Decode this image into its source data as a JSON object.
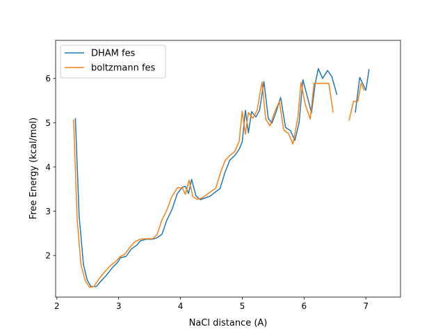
{
  "chart_data": {
    "type": "line",
    "xlabel": "NaCl distance (A)",
    "ylabel": "Free Energy (kcal/mol)",
    "xlim": [
      1.98,
      7.56
    ],
    "ylim": [
      1.06,
      6.86
    ],
    "xticks": [
      2,
      3,
      4,
      5,
      6,
      7
    ],
    "yticks": [
      2,
      3,
      4,
      5,
      6
    ],
    "grid": false,
    "legend_position": "top-left",
    "series": [
      {
        "name": "DHAM fes",
        "color": "#1f77b4",
        "segments": [
          [
            [
              2.3,
              5.09
            ],
            [
              2.36,
              2.9
            ],
            [
              2.43,
              1.8
            ],
            [
              2.49,
              1.45
            ],
            [
              2.55,
              1.3
            ],
            [
              2.64,
              1.3
            ],
            [
              2.7,
              1.4
            ],
            [
              2.8,
              1.55
            ],
            [
              2.9,
              1.73
            ],
            [
              2.98,
              1.84
            ],
            [
              3.03,
              1.95
            ],
            [
              3.12,
              1.98
            ],
            [
              3.2,
              2.14
            ],
            [
              3.3,
              2.24
            ],
            [
              3.35,
              2.33
            ],
            [
              3.45,
              2.37
            ],
            [
              3.55,
              2.37
            ],
            [
              3.62,
              2.4
            ],
            [
              3.7,
              2.48
            ],
            [
              3.78,
              2.8
            ],
            [
              3.86,
              3.03
            ],
            [
              3.95,
              3.4
            ],
            [
              4.03,
              3.54
            ],
            [
              4.08,
              3.56
            ],
            [
              4.13,
              3.4
            ],
            [
              4.18,
              3.72
            ],
            [
              4.25,
              3.35
            ],
            [
              4.32,
              3.26
            ],
            [
              4.4,
              3.3
            ],
            [
              4.48,
              3.34
            ],
            [
              4.55,
              3.42
            ],
            [
              4.64,
              3.51
            ],
            [
              4.72,
              3.88
            ],
            [
              4.8,
              4.16
            ],
            [
              4.88,
              4.26
            ],
            [
              4.95,
              4.4
            ],
            [
              5.0,
              4.57
            ],
            [
              5.05,
              5.28
            ],
            [
              5.1,
              4.77
            ],
            [
              5.15,
              5.25
            ],
            [
              5.22,
              5.13
            ],
            [
              5.28,
              5.28
            ],
            [
              5.35,
              5.93
            ],
            [
              5.42,
              5.1
            ],
            [
              5.48,
              4.99
            ],
            [
              5.55,
              5.25
            ],
            [
              5.62,
              5.57
            ],
            [
              5.7,
              4.89
            ],
            [
              5.78,
              4.82
            ],
            [
              5.85,
              4.6
            ],
            [
              5.92,
              5.0
            ],
            [
              5.98,
              5.97
            ],
            [
              6.05,
              5.6
            ],
            [
              6.12,
              5.22
            ],
            [
              6.18,
              5.88
            ],
            [
              6.23,
              6.22
            ],
            [
              6.3,
              6.0
            ],
            [
              6.38,
              6.18
            ],
            [
              6.45,
              6.04
            ],
            [
              6.53,
              5.64
            ]
          ],
          [
            [
              6.83,
              5.24
            ],
            [
              6.9,
              6.02
            ],
            [
              6.95,
              5.88
            ],
            [
              7.0,
              5.73
            ],
            [
              7.05,
              6.2
            ]
          ]
        ]
      },
      {
        "name": "boltzmann fes",
        "color": "#ff7f0e",
        "segments": [
          [
            [
              2.27,
              5.06
            ],
            [
              2.33,
              2.8
            ],
            [
              2.39,
              1.8
            ],
            [
              2.46,
              1.43
            ],
            [
              2.53,
              1.28
            ],
            [
              2.6,
              1.3
            ],
            [
              2.68,
              1.47
            ],
            [
              2.78,
              1.64
            ],
            [
              2.88,
              1.79
            ],
            [
              2.95,
              1.86
            ],
            [
              3.02,
              1.97
            ],
            [
              3.1,
              2.03
            ],
            [
              3.18,
              2.18
            ],
            [
              3.26,
              2.31
            ],
            [
              3.35,
              2.37
            ],
            [
              3.45,
              2.38
            ],
            [
              3.55,
              2.38
            ],
            [
              3.62,
              2.47
            ],
            [
              3.7,
              2.8
            ],
            [
              3.78,
              3.03
            ],
            [
              3.86,
              3.33
            ],
            [
              3.95,
              3.53
            ],
            [
              4.03,
              3.53
            ],
            [
              4.08,
              3.38
            ],
            [
              4.14,
              3.7
            ],
            [
              4.2,
              3.33
            ],
            [
              4.27,
              3.27
            ],
            [
              4.35,
              3.3
            ],
            [
              4.42,
              3.37
            ],
            [
              4.5,
              3.45
            ],
            [
              4.57,
              3.52
            ],
            [
              4.65,
              3.88
            ],
            [
              4.72,
              4.14
            ],
            [
              4.8,
              4.26
            ],
            [
              4.88,
              4.35
            ],
            [
              4.95,
              4.58
            ],
            [
              5.0,
              5.26
            ],
            [
              5.05,
              4.74
            ],
            [
              5.1,
              5.23
            ],
            [
              5.17,
              5.1
            ],
            [
              5.24,
              5.28
            ],
            [
              5.32,
              5.92
            ],
            [
              5.38,
              5.08
            ],
            [
              5.45,
              4.93
            ],
            [
              5.52,
              5.23
            ],
            [
              5.6,
              5.48
            ],
            [
              5.67,
              4.84
            ],
            [
              5.75,
              4.75
            ],
            [
              5.82,
              4.52
            ],
            [
              5.9,
              5.11
            ],
            [
              5.95,
              5.91
            ],
            [
              6.02,
              5.41
            ],
            [
              6.1,
              5.08
            ],
            [
              6.16,
              5.89
            ],
            [
              6.25,
              5.89
            ],
            [
              6.32,
              5.89
            ],
            [
              6.4,
              5.89
            ],
            [
              6.47,
              5.24
            ]
          ],
          [
            [
              6.73,
              5.06
            ],
            [
              6.8,
              5.48
            ],
            [
              6.87,
              5.48
            ],
            [
              6.92,
              5.89
            ],
            [
              6.97,
              5.74
            ]
          ]
        ]
      }
    ]
  }
}
